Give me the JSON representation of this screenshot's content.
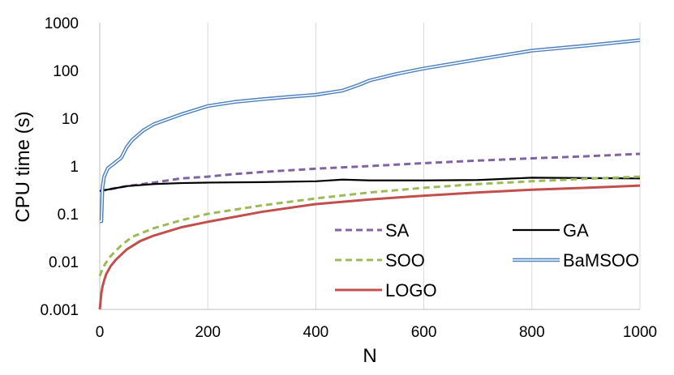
{
  "chart_data": {
    "type": "line",
    "title": "",
    "xlabel": "N",
    "ylabel": "CPU time (s)",
    "x_scale": "linear",
    "y_scale": "log",
    "xlim": [
      0,
      1000
    ],
    "ylim": [
      0.001,
      1000
    ],
    "x_ticks": [
      "0",
      "200",
      "400",
      "600",
      "800",
      "1000"
    ],
    "y_ticks": [
      "0.001",
      "0.01",
      "0.1",
      "1",
      "10",
      "100",
      "1000"
    ],
    "grid": "vertical",
    "legend_placement": "bottom-right",
    "series": [
      {
        "name": "SA",
        "color": "#8064a2",
        "style": "dashed",
        "x": [
          0,
          20,
          50,
          100,
          150,
          200,
          250,
          300,
          400,
          500,
          600,
          700,
          800,
          900,
          1000
        ],
        "y": [
          0.3,
          0.33,
          0.38,
          0.45,
          0.55,
          0.6,
          0.68,
          0.75,
          0.88,
          1.0,
          1.15,
          1.3,
          1.45,
          1.6,
          1.8
        ]
      },
      {
        "name": "GA",
        "color": "#000000",
        "style": "solid",
        "x": [
          0,
          20,
          50,
          100,
          150,
          200,
          300,
          400,
          450,
          500,
          600,
          700,
          800,
          900,
          1000
        ],
        "y": [
          0.3,
          0.33,
          0.38,
          0.42,
          0.44,
          0.45,
          0.46,
          0.48,
          0.52,
          0.5,
          0.5,
          0.51,
          0.57,
          0.56,
          0.55
        ]
      },
      {
        "name": "SOO",
        "color": "#9bbb59",
        "style": "dashed",
        "x": [
          0,
          5,
          10,
          20,
          40,
          60,
          100,
          150,
          200,
          300,
          400,
          500,
          600,
          700,
          800,
          900,
          1000
        ],
        "y": [
          0.005,
          0.007,
          0.009,
          0.013,
          0.022,
          0.033,
          0.05,
          0.073,
          0.1,
          0.15,
          0.21,
          0.28,
          0.35,
          0.42,
          0.48,
          0.54,
          0.6
        ]
      },
      {
        "name": "BaMSOO",
        "color": "#4f81bd",
        "style": "double",
        "x": [
          0,
          3,
          5,
          8,
          15,
          25,
          40,
          50,
          60,
          80,
          100,
          150,
          200,
          250,
          300,
          350,
          400,
          450,
          480,
          500,
          550,
          600,
          700,
          800,
          900,
          1000
        ],
        "y": [
          0.07,
          0.07,
          0.35,
          0.6,
          0.9,
          1.1,
          1.5,
          2.5,
          3.5,
          5.5,
          7.5,
          12,
          18,
          22,
          25,
          28,
          31,
          38,
          50,
          62,
          85,
          110,
          170,
          260,
          330,
          430
        ]
      },
      {
        "name": "LOGO",
        "color": "#c0504d",
        "style": "solid",
        "x": [
          0,
          3,
          5,
          8,
          12,
          20,
          30,
          50,
          75,
          100,
          150,
          200,
          300,
          400,
          500,
          600,
          700,
          800,
          900,
          1000
        ],
        "y": [
          0.001,
          0.0022,
          0.003,
          0.004,
          0.0055,
          0.008,
          0.011,
          0.018,
          0.027,
          0.035,
          0.052,
          0.068,
          0.11,
          0.16,
          0.2,
          0.24,
          0.28,
          0.32,
          0.35,
          0.39
        ]
      }
    ]
  }
}
